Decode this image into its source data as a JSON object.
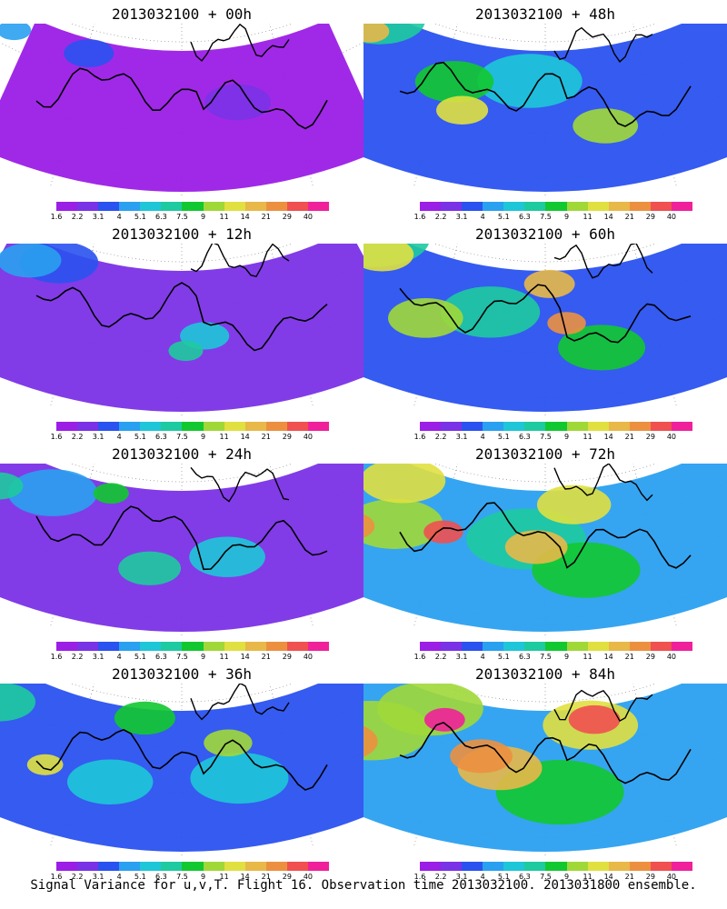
{
  "colorbar": {
    "colors": [
      "#9b1ee6",
      "#7a32e6",
      "#2a52f0",
      "#2aa0f0",
      "#1ec6d8",
      "#1ecaa0",
      "#12c830",
      "#a0d838",
      "#e0e040",
      "#e8b848",
      "#ec9040",
      "#f05050",
      "#f0209a"
    ],
    "labels": [
      "1.6",
      "2.2",
      "3.1",
      "4",
      "5.1",
      "6.3",
      "7.5",
      "9",
      "11",
      "14",
      "21",
      "29",
      "40"
    ]
  },
  "panels": [
    {
      "title": "2013032100 + 00h",
      "level": 0.08
    },
    {
      "title": "2013032100 + 48h",
      "level": 0.55
    },
    {
      "title": "2013032100 + 12h",
      "level": 0.22
    },
    {
      "title": "2013032100 + 60h",
      "level": 0.62
    },
    {
      "title": "2013032100 + 24h",
      "level": 0.35
    },
    {
      "title": "2013032100 + 72h",
      "level": 0.72
    },
    {
      "title": "2013032100 + 36h",
      "level": 0.45
    },
    {
      "title": "2013032100 + 84h",
      "level": 0.82
    }
  ],
  "footer": "Signal Variance for u,v,T. Flight 16. Observation time 2013032100. 2013031800 ensemble."
}
